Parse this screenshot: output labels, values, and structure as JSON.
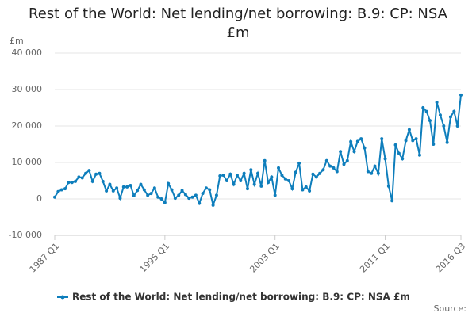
{
  "chart_data": {
    "type": "line",
    "title": "Rest of the World: Net lending/net borrowing: B.9: CP: NSA £m",
    "y_label": "£m",
    "source": "Source:",
    "categories": [
      "1987 Q1",
      null,
      null,
      null,
      null,
      null,
      null,
      null,
      null,
      null,
      null,
      null,
      null,
      null,
      null,
      null,
      null,
      null,
      null,
      null,
      null,
      null,
      null,
      null,
      null,
      null,
      null,
      null,
      null,
      null,
      null,
      null,
      "1995 Q1",
      null,
      null,
      null,
      null,
      null,
      null,
      null,
      null,
      null,
      null,
      null,
      null,
      null,
      null,
      null,
      null,
      null,
      null,
      null,
      null,
      null,
      null,
      null,
      null,
      null,
      null,
      null,
      null,
      null,
      null,
      null,
      "2003 Q1",
      null,
      null,
      null,
      null,
      null,
      null,
      null,
      null,
      null,
      null,
      null,
      null,
      null,
      null,
      null,
      null,
      null,
      null,
      null,
      null,
      null,
      null,
      null,
      null,
      null,
      null,
      null,
      null,
      null,
      null,
      null,
      "2011 Q1",
      null,
      null,
      null,
      null,
      null,
      null,
      null,
      null,
      null,
      null,
      null,
      null,
      null,
      null,
      null,
      null,
      null,
      null,
      null,
      null,
      null,
      "2016 Q3"
    ],
    "series": [
      {
        "name": "Rest of the World: Net lending/net borrowing: B.9: CP: NSA £m",
        "color": "#0e7ebc",
        "values": [
          500,
          2000,
          2500,
          2800,
          4500,
          4500,
          4800,
          6000,
          5800,
          7000,
          7800,
          4800,
          6800,
          7000,
          4800,
          2200,
          4000,
          2200,
          3000,
          200,
          3300,
          3300,
          3700,
          900,
          2300,
          4000,
          2500,
          1000,
          1500,
          3000,
          500,
          0,
          -1000,
          4200,
          2500,
          200,
          1000,
          2300,
          1200,
          200,
          500,
          1000,
          -1200,
          1500,
          3000,
          2500,
          -1700,
          1000,
          6300,
          6500,
          5000,
          6800,
          4000,
          6500,
          5000,
          7000,
          2800,
          8000,
          4000,
          7000,
          3500,
          10500,
          4500,
          6000,
          1000,
          8500,
          6500,
          5500,
          5000,
          2800,
          7300,
          9800,
          2500,
          3300,
          2200,
          6800,
          6000,
          7000,
          8000,
          10500,
          9000,
          8500,
          7500,
          13000,
          9500,
          10500,
          15700,
          13000,
          15800,
          16500,
          14000,
          7500,
          7000,
          9000,
          7000,
          16500,
          11000,
          3500,
          -500,
          14800,
          12500,
          11000,
          16000,
          19000,
          16000,
          16500,
          12000,
          25000,
          24000,
          21500,
          15000,
          26500,
          23000,
          20000,
          15500,
          22500,
          24000,
          20000,
          28500
        ]
      }
    ],
    "ylim": [
      -10000,
      40000
    ],
    "yticks": [
      {
        "value": -10000,
        "label": "-10 000"
      },
      0,
      {
        "value": 10000,
        "label": "10 000"
      },
      {
        "value": 20000,
        "label": "20 000"
      },
      {
        "value": 30000,
        "label": "30 000"
      },
      {
        "value": 40000,
        "label": "40 000"
      }
    ],
    "grid": true,
    "legend": "bottom"
  }
}
